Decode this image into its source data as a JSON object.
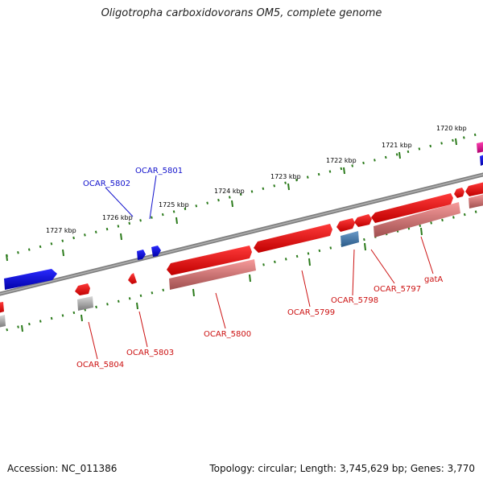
{
  "title": "Oligotropha carboxidovorans OM5, complete genome",
  "footer": {
    "accession": "Accession: NC_011386",
    "summary": "Topology: circular; Length: 3,745,629 bp; Genes: 3,770"
  },
  "colors": {
    "backbone": "#808080",
    "ticks": "#2a7a1a",
    "gene_forward": "#ee1111",
    "gene_reverse": "#1010dd",
    "product": "#f08080",
    "label_forward": "#cc1111",
    "label_reverse": "#1111cc"
  },
  "kbp_labels": [
    "1720 kbp",
    "1721 kbp",
    "1722 kbp",
    "1723 kbp",
    "1724 kbp",
    "1725 kbp",
    "1726 kbp",
    "1727 kbp"
  ],
  "gene_labels": {
    "ocar_5801": "OCAR_5801",
    "ocar_5802": "OCAR_5802",
    "gata": "gatA",
    "ocar_5797": "OCAR_5797",
    "ocar_5798": "OCAR_5798",
    "ocar_5799": "OCAR_5799",
    "ocar_5800": "OCAR_5800",
    "ocar_5803": "OCAR_5803",
    "ocar_5804": "OCAR_5804"
  }
}
